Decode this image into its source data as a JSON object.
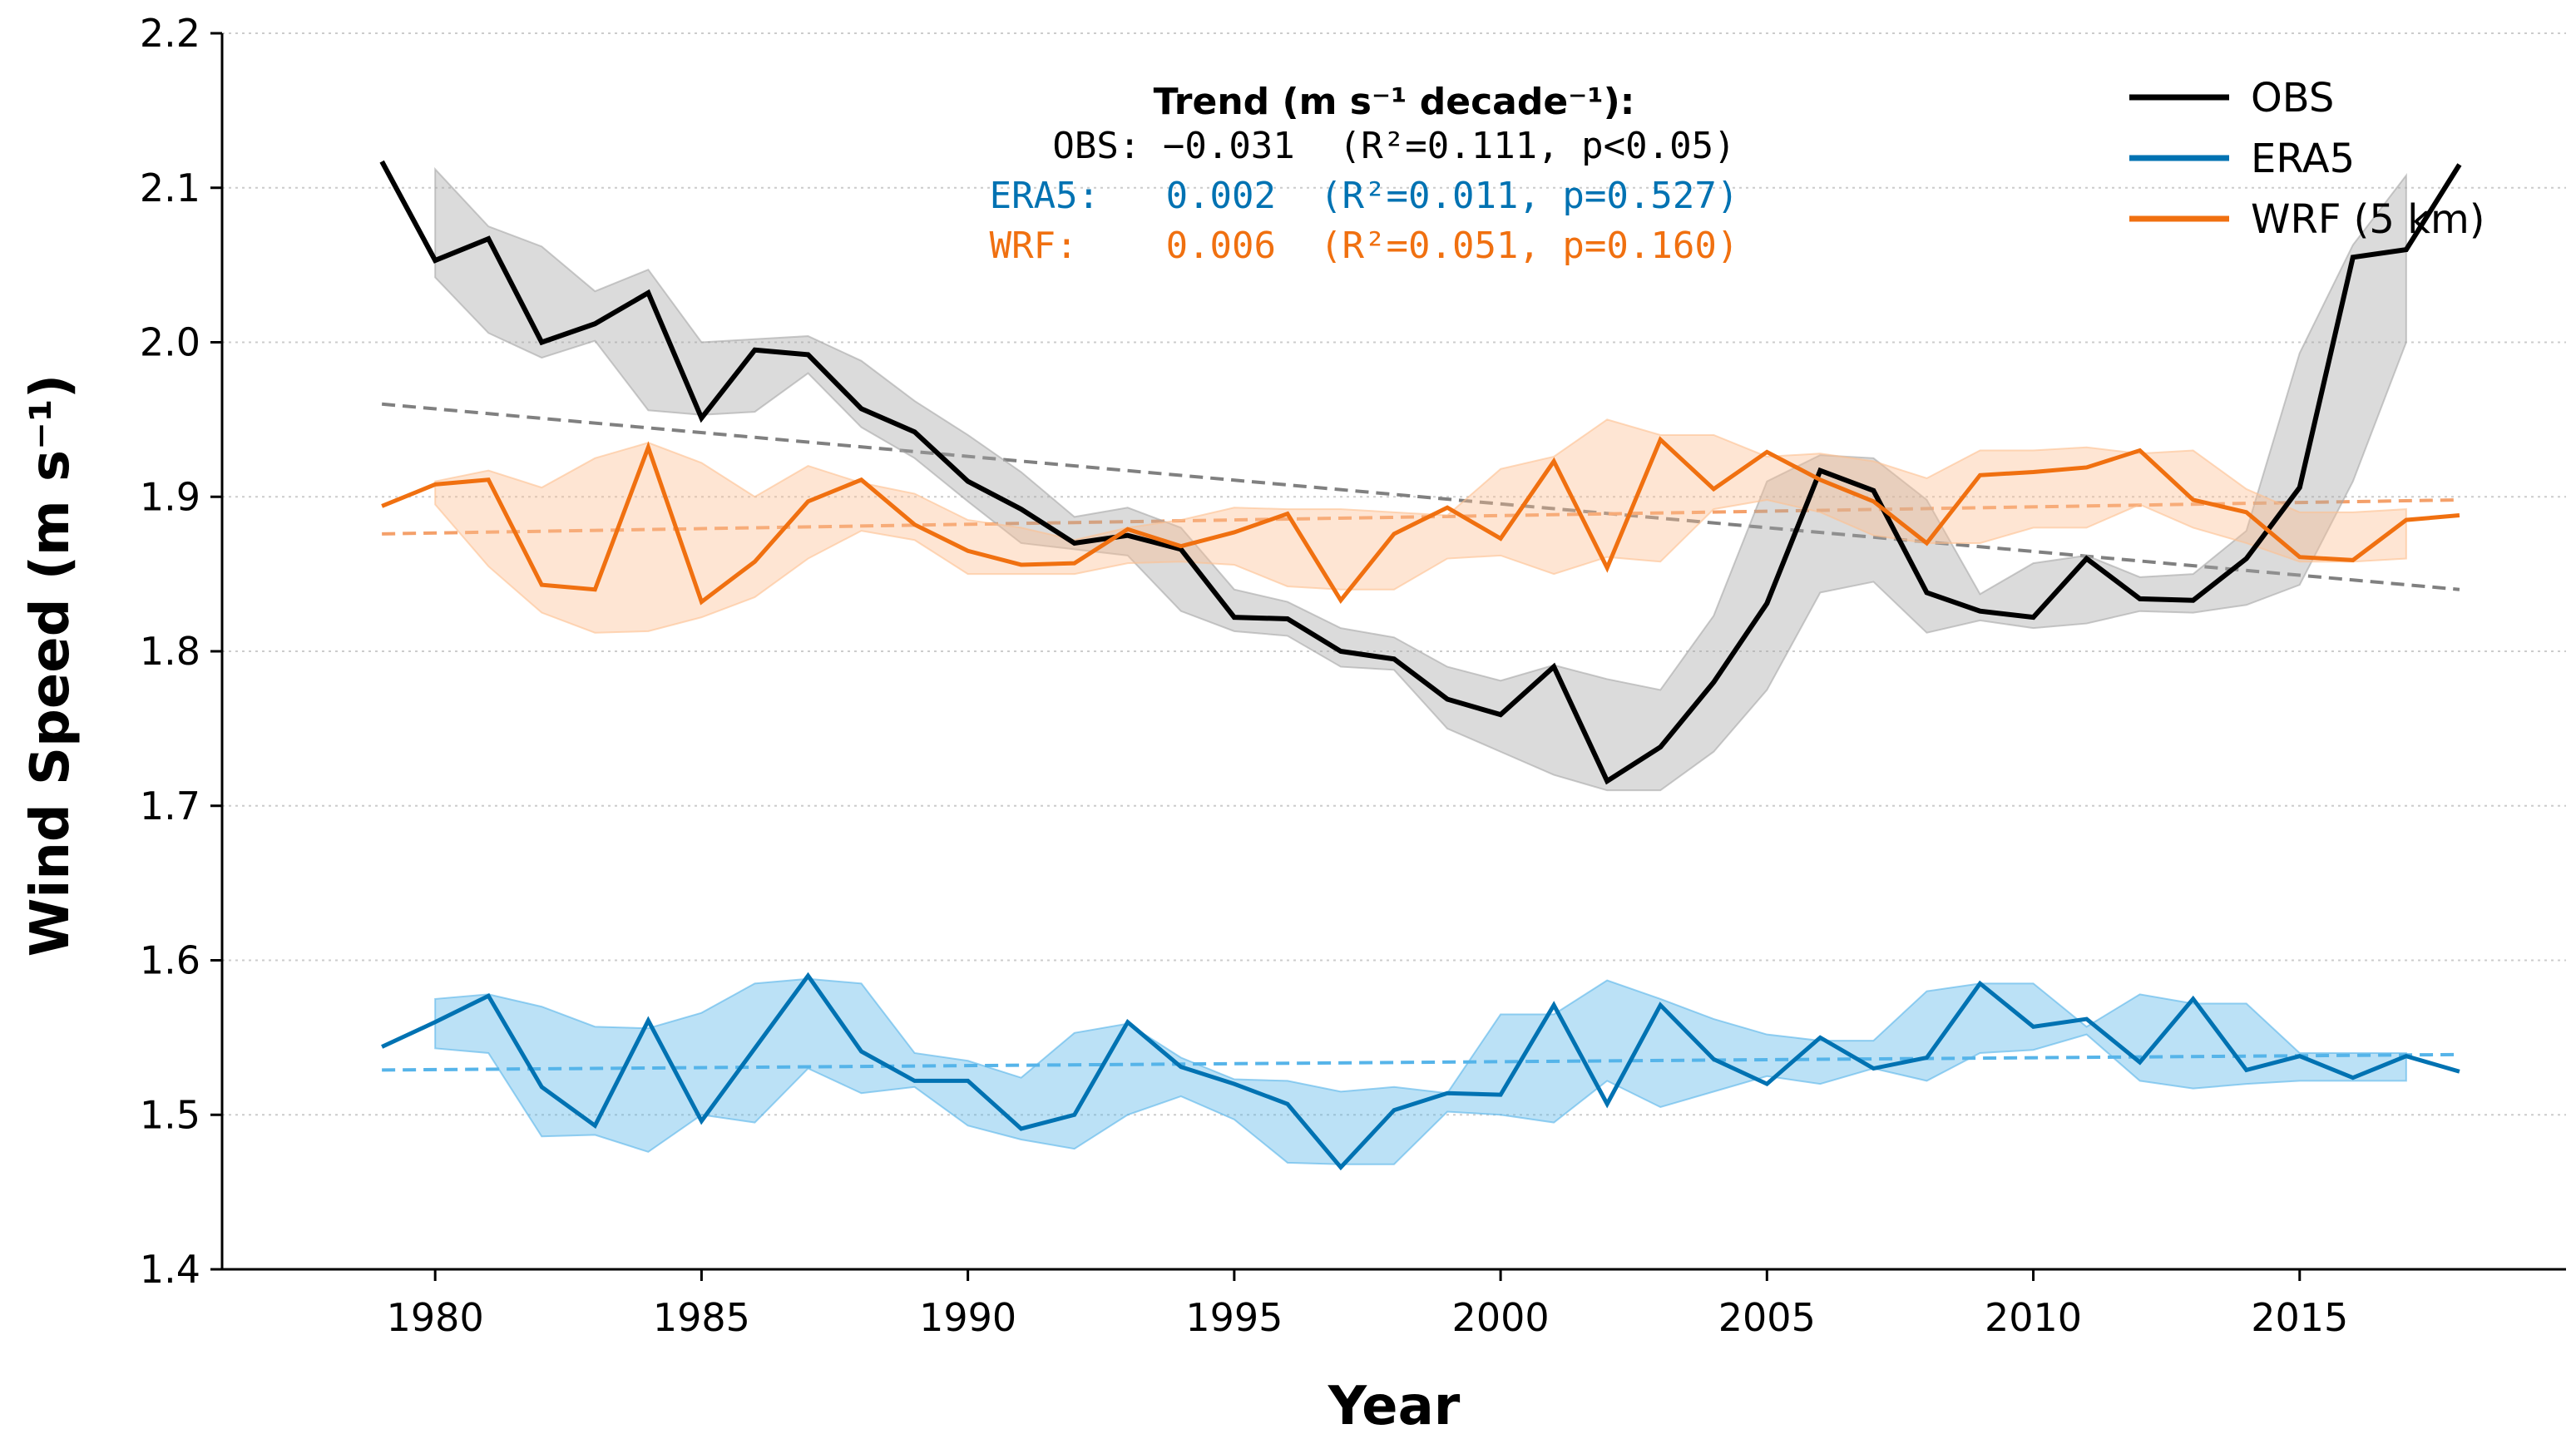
{
  "chart_data": {
    "type": "line",
    "title": "",
    "xlabel": "Year",
    "ylabel": "Wind Speed (m s⁻¹)",
    "xlim": [
      1976,
      2020
    ],
    "ylim": [
      1.4,
      2.2
    ],
    "xticks": [
      1980,
      1985,
      1990,
      1995,
      2000,
      2005,
      2010,
      2015
    ],
    "yticks": [
      1.4,
      1.5,
      1.6,
      1.7,
      1.8,
      1.9,
      2.0,
      2.1,
      2.2
    ],
    "ytick_labels": [
      "1.4",
      "1.5",
      "1.6",
      "1.7",
      "1.8",
      "1.9",
      "2.0",
      "2.1",
      "2.2"
    ],
    "grid": "horizontal dotted",
    "legend_position": "top-right",
    "x": [
      1979,
      1980,
      1981,
      1982,
      1983,
      1984,
      1985,
      1986,
      1987,
      1988,
      1989,
      1990,
      1991,
      1992,
      1993,
      1994,
      1995,
      1996,
      1997,
      1998,
      1999,
      2000,
      2001,
      2002,
      2003,
      2004,
      2005,
      2006,
      2007,
      2008,
      2009,
      2010,
      2011,
      2012,
      2013,
      2014,
      2015,
      2016,
      2017,
      2018
    ],
    "series": [
      {
        "name": "OBS",
        "color": "#000000",
        "band_color": "#a6a6a6",
        "values": [
          2.117,
          2.053,
          2.067,
          2.0,
          2.012,
          2.032,
          1.951,
          1.995,
          1.992,
          1.957,
          1.942,
          1.91,
          1.892,
          1.87,
          1.875,
          1.866,
          1.822,
          1.821,
          1.8,
          1.795,
          1.769,
          1.759,
          1.79,
          1.716,
          1.738,
          1.78,
          1.831,
          1.917,
          1.904,
          1.838,
          1.826,
          1.822,
          1.86,
          1.834,
          1.833,
          1.86,
          1.906,
          2.055,
          2.06,
          2.115
        ],
        "band_lower": [
          null,
          2.042,
          2.006,
          1.99,
          2.001,
          1.956,
          1.953,
          1.955,
          1.98,
          1.945,
          1.925,
          1.897,
          1.87,
          1.866,
          1.862,
          1.826,
          1.813,
          1.81,
          1.79,
          1.788,
          1.75,
          1.735,
          1.72,
          1.71,
          1.71,
          1.735,
          1.775,
          1.838,
          1.845,
          1.812,
          1.82,
          1.815,
          1.818,
          1.826,
          1.825,
          1.83,
          1.843,
          1.91,
          2.0,
          null
        ],
        "band_upper": [
          null,
          2.112,
          2.075,
          2.062,
          2.033,
          2.047,
          2.0,
          2.002,
          2.004,
          1.988,
          1.962,
          1.94,
          1.916,
          1.887,
          1.893,
          1.88,
          1.84,
          1.832,
          1.815,
          1.809,
          1.79,
          1.781,
          1.791,
          1.782,
          1.775,
          1.823,
          1.91,
          1.927,
          1.925,
          1.898,
          1.837,
          1.857,
          1.862,
          1.848,
          1.85,
          1.878,
          1.993,
          2.063,
          2.108,
          null
        ],
        "trend_label": "OBS:",
        "trend_value": "−0.031",
        "trend_stats": "(R²=0.111, p<0.05)",
        "trend_line": {
          "start": [
            1979,
            1.96
          ],
          "end": [
            2018,
            1.84
          ],
          "color": "#808080"
        }
      },
      {
        "name": "ERA5",
        "color": "#0072b2",
        "band_color": "#56b4e9",
        "values": [
          1.544,
          1.56,
          1.577,
          1.518,
          1.493,
          1.561,
          1.496,
          1.543,
          1.59,
          1.541,
          1.522,
          1.522,
          1.491,
          1.5,
          1.56,
          1.531,
          1.52,
          1.507,
          1.466,
          1.503,
          1.514,
          1.513,
          1.571,
          1.507,
          1.571,
          1.536,
          1.52,
          1.55,
          1.53,
          1.537,
          1.585,
          1.557,
          1.562,
          1.534,
          1.575,
          1.529,
          1.538,
          1.524,
          1.538,
          1.528
        ],
        "band_lower": [
          null,
          1.543,
          1.54,
          1.486,
          1.487,
          1.476,
          1.5,
          1.495,
          1.53,
          1.514,
          1.518,
          1.493,
          1.484,
          1.478,
          1.5,
          1.512,
          1.497,
          1.469,
          1.468,
          1.468,
          1.502,
          1.5,
          1.495,
          1.522,
          1.505,
          1.515,
          1.525,
          1.52,
          1.53,
          1.522,
          1.54,
          1.542,
          1.552,
          1.522,
          1.517,
          1.52,
          1.522,
          1.522,
          1.522,
          null
        ],
        "band_upper": [
          null,
          1.575,
          1.578,
          1.57,
          1.557,
          1.556,
          1.566,
          1.585,
          1.588,
          1.585,
          1.54,
          1.535,
          1.524,
          1.553,
          1.559,
          1.537,
          1.523,
          1.522,
          1.515,
          1.518,
          1.514,
          1.565,
          1.565,
          1.587,
          1.575,
          1.562,
          1.552,
          1.548,
          1.548,
          1.58,
          1.585,
          1.585,
          1.557,
          1.578,
          1.572,
          1.572,
          1.54,
          1.54,
          1.54,
          null
        ],
        "trend_label": "ERA5:",
        "trend_value": "0.002",
        "trend_stats": "(R²=0.011, p=0.527)",
        "trend_line": {
          "start": [
            1979,
            1.529
          ],
          "end": [
            2018,
            1.539
          ],
          "color": "#56b4e9"
        }
      },
      {
        "name": "WRF (5 km)",
        "color": "#f07010",
        "band_color": "#fdbf90",
        "values": [
          1.894,
          1.908,
          1.911,
          1.843,
          1.84,
          1.932,
          1.832,
          1.858,
          1.897,
          1.911,
          1.882,
          1.865,
          1.856,
          1.857,
          1.879,
          1.868,
          1.877,
          1.889,
          1.833,
          1.876,
          1.893,
          1.873,
          1.923,
          1.854,
          1.937,
          1.905,
          1.929,
          1.911,
          1.897,
          1.87,
          1.914,
          1.916,
          1.919,
          1.93,
          1.898,
          1.89,
          1.861,
          1.859,
          1.885,
          1.888
        ],
        "band_lower": [
          null,
          1.895,
          1.855,
          1.825,
          1.812,
          1.813,
          1.822,
          1.835,
          1.86,
          1.878,
          1.872,
          1.85,
          1.85,
          1.85,
          1.857,
          1.858,
          1.856,
          1.842,
          1.84,
          1.84,
          1.86,
          1.862,
          1.85,
          1.861,
          1.858,
          1.892,
          1.898,
          1.89,
          1.875,
          1.87,
          1.87,
          1.88,
          1.88,
          1.895,
          1.88,
          1.87,
          1.858,
          1.858,
          1.86,
          null
        ],
        "band_upper": [
          null,
          1.91,
          1.917,
          1.906,
          1.925,
          1.935,
          1.922,
          1.9,
          1.92,
          1.909,
          1.902,
          1.885,
          1.88,
          1.872,
          1.88,
          1.885,
          1.893,
          1.892,
          1.892,
          1.89,
          1.888,
          1.918,
          1.926,
          1.95,
          1.94,
          1.94,
          1.926,
          1.928,
          1.923,
          1.912,
          1.93,
          1.93,
          1.932,
          1.928,
          1.93,
          1.905,
          1.89,
          1.89,
          1.892,
          null
        ],
        "trend_label": "WRF:",
        "trend_value": "0.006",
        "trend_stats": "(R²=0.051, p=0.160)",
        "trend_line": {
          "start": [
            1979,
            1.876
          ],
          "end": [
            2018,
            1.898
          ],
          "color": "#f4a06a"
        }
      }
    ],
    "annotation": {
      "title": "Trend (m s⁻¹ decade⁻¹):",
      "lines": [
        "OBS: −0.031  (R²=0.111, p<0.05)",
        "ERA5:   0.002  (R²=0.011, p=0.527)",
        "WRF:    0.006  (R²=0.051, p=0.160)"
      ]
    }
  }
}
